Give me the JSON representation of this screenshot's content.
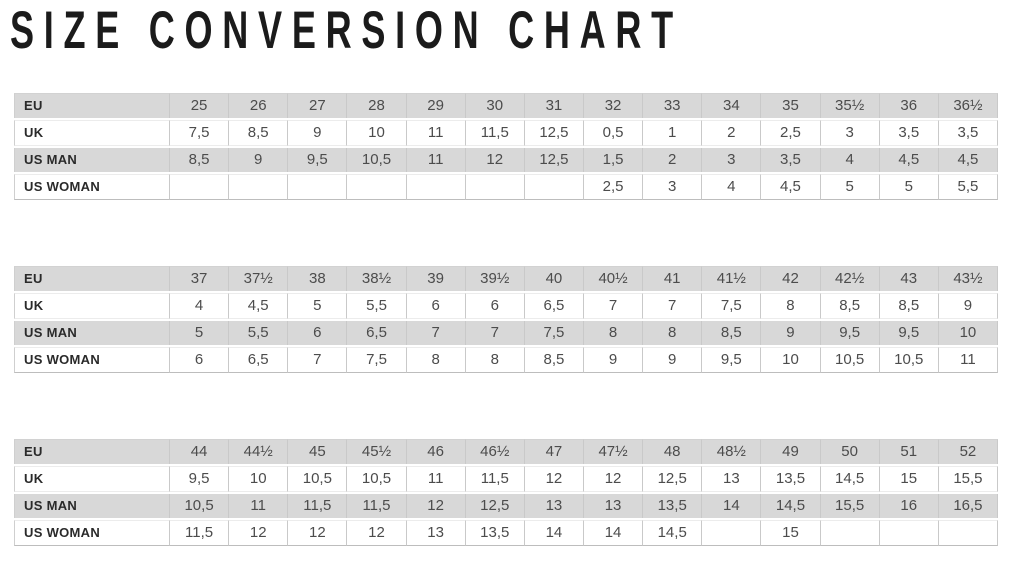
{
  "page": {
    "title": "SIZE CONVERSION CHART"
  },
  "colors": {
    "title_text": "#1b1b1b",
    "row_shade": "#d8d8d8",
    "grid_line": "#c9c9c9",
    "label_text": "#2a2a2a",
    "value_text": "#4c4c4c"
  },
  "chart_data": [
    {
      "type": "table",
      "row_headers": [
        "EU",
        "UK",
        "US MAN",
        "US WOMAN"
      ],
      "rows": [
        [
          "25",
          "26",
          "27",
          "28",
          "29",
          "30",
          "31",
          "32",
          "33",
          "34",
          "35",
          "35½",
          "36",
          "36½"
        ],
        [
          "7,5",
          "8,5",
          "9",
          "10",
          "11",
          "11,5",
          "12,5",
          "0,5",
          "1",
          "2",
          "2,5",
          "3",
          "3,5",
          "3,5"
        ],
        [
          "8,5",
          "9",
          "9,5",
          "10,5",
          "11",
          "12",
          "12,5",
          "1,5",
          "2",
          "3",
          "3,5",
          "4",
          "4,5",
          "4,5"
        ],
        [
          "",
          "",
          "",
          "",
          "",
          "",
          "",
          "2,5",
          "3",
          "4",
          "4,5",
          "5",
          "5",
          "5,5"
        ]
      ]
    },
    {
      "type": "table",
      "row_headers": [
        "EU",
        "UK",
        "US MAN",
        "US WOMAN"
      ],
      "rows": [
        [
          "37",
          "37½",
          "38",
          "38½",
          "39",
          "39½",
          "40",
          "40½",
          "41",
          "41½",
          "42",
          "42½",
          "43",
          "43½"
        ],
        [
          "4",
          "4,5",
          "5",
          "5,5",
          "6",
          "6",
          "6,5",
          "7",
          "7",
          "7,5",
          "8",
          "8,5",
          "8,5",
          "9"
        ],
        [
          "5",
          "5,5",
          "6",
          "6,5",
          "7",
          "7",
          "7,5",
          "8",
          "8",
          "8,5",
          "9",
          "9,5",
          "9,5",
          "10"
        ],
        [
          "6",
          "6,5",
          "7",
          "7,5",
          "8",
          "8",
          "8,5",
          "9",
          "9",
          "9,5",
          "10",
          "10,5",
          "10,5",
          "11"
        ]
      ]
    },
    {
      "type": "table",
      "row_headers": [
        "EU",
        "UK",
        "US MAN",
        "US WOMAN"
      ],
      "rows": [
        [
          "44",
          "44½",
          "45",
          "45½",
          "46",
          "46½",
          "47",
          "47½",
          "48",
          "48½",
          "49",
          "50",
          "51",
          "52"
        ],
        [
          "9,5",
          "10",
          "10,5",
          "10,5",
          "11",
          "11,5",
          "12",
          "12",
          "12,5",
          "13",
          "13,5",
          "14,5",
          "15",
          "15,5"
        ],
        [
          "10,5",
          "11",
          "11,5",
          "11,5",
          "12",
          "12,5",
          "13",
          "13",
          "13,5",
          "14",
          "14,5",
          "15,5",
          "16",
          "16,5"
        ],
        [
          "11,5",
          "12",
          "12",
          "12",
          "13",
          "13,5",
          "14",
          "14",
          "14,5",
          "",
          "15",
          "",
          "",
          ""
        ]
      ]
    }
  ]
}
